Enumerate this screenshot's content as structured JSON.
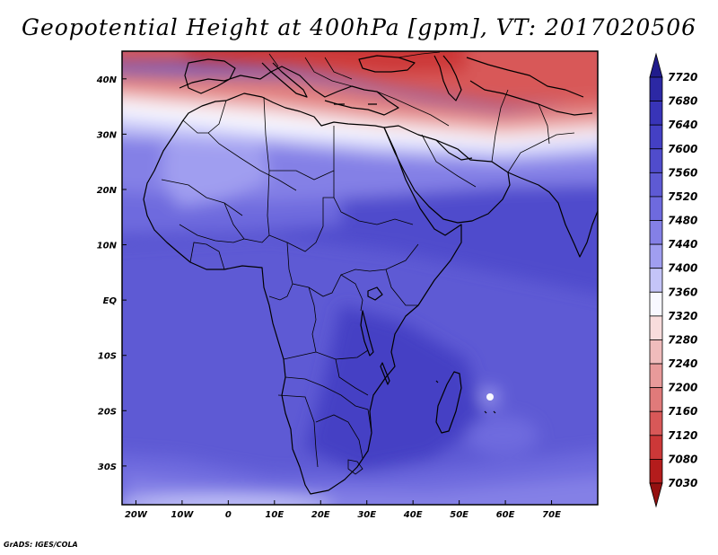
{
  "title": "Geopotential Height at 400hPa [gpm], VT: 2017020506",
  "credit": "GrADS: IGES/COLA",
  "map": {
    "lon_range": [
      -23,
      80
    ],
    "lat_range": [
      -37,
      45
    ],
    "x_ticks": [
      {
        "lon": -20,
        "label": "20W"
      },
      {
        "lon": -10,
        "label": "10W"
      },
      {
        "lon": 0,
        "label": "0"
      },
      {
        "lon": 10,
        "label": "10E"
      },
      {
        "lon": 20,
        "label": "20E"
      },
      {
        "lon": 30,
        "label": "30E"
      },
      {
        "lon": 40,
        "label": "40E"
      },
      {
        "lon": 50,
        "label": "50E"
      },
      {
        "lon": 60,
        "label": "60E"
      },
      {
        "lon": 70,
        "label": "70E"
      }
    ],
    "y_ticks": [
      {
        "lat": 40,
        "label": "40N"
      },
      {
        "lat": 30,
        "label": "30N"
      },
      {
        "lat": 20,
        "label": "20N"
      },
      {
        "lat": 10,
        "label": "10N"
      },
      {
        "lat": 0,
        "label": "EQ"
      },
      {
        "lat": -10,
        "label": "10S"
      },
      {
        "lat": -20,
        "label": "20S"
      },
      {
        "lat": -30,
        "label": "30S"
      }
    ]
  },
  "colorbar": {
    "labels": [
      "7720",
      "7680",
      "7640",
      "7600",
      "7560",
      "7520",
      "7480",
      "7440",
      "7400",
      "7360",
      "7320",
      "7280",
      "7240",
      "7200",
      "7160",
      "7120",
      "7080",
      "7030"
    ],
    "colors": [
      "#201c8c",
      "#2c28a4",
      "#3834b8",
      "#4440c4",
      "#504ccc",
      "#5e5ad4",
      "#6e6ade",
      "#8480e6",
      "#a09ef0",
      "#c4c4f8",
      "#f8f8ff",
      "#f8dcdc",
      "#f0bcbc",
      "#e89a9a",
      "#e07a7a",
      "#d85858",
      "#cc3838",
      "#b41c1c",
      "#941010"
    ]
  },
  "chart_data": {
    "type": "heatmap",
    "variable": "Geopotential Height at 400hPa [gpm]",
    "valid_time": "2017020506",
    "levels": [
      7030,
      7080,
      7120,
      7160,
      7200,
      7240,
      7280,
      7320,
      7360,
      7400,
      7440,
      7480,
      7520,
      7560,
      7600,
      7640,
      7680,
      7720
    ],
    "approx_field": [
      {
        "lat": 42,
        "lon": 10,
        "value": 7150
      },
      {
        "lat": 40,
        "lon": 40,
        "value": 7100
      },
      {
        "lat": 35,
        "lon": 20,
        "value": 7280
      },
      {
        "lat": 30,
        "lon": 10,
        "value": 7400
      },
      {
        "lat": 25,
        "lon": 0,
        "value": 7440
      },
      {
        "lat": 15,
        "lon": 30,
        "value": 7540
      },
      {
        "lat": 10,
        "lon": 60,
        "value": 7580
      },
      {
        "lat": 0,
        "lon": 20,
        "value": 7560
      },
      {
        "lat": -20,
        "lon": 45,
        "value": 7620
      },
      {
        "lat": -20,
        "lon": 56,
        "value": 7460
      },
      {
        "lat": -35,
        "lon": 20,
        "value": 7480
      }
    ]
  }
}
